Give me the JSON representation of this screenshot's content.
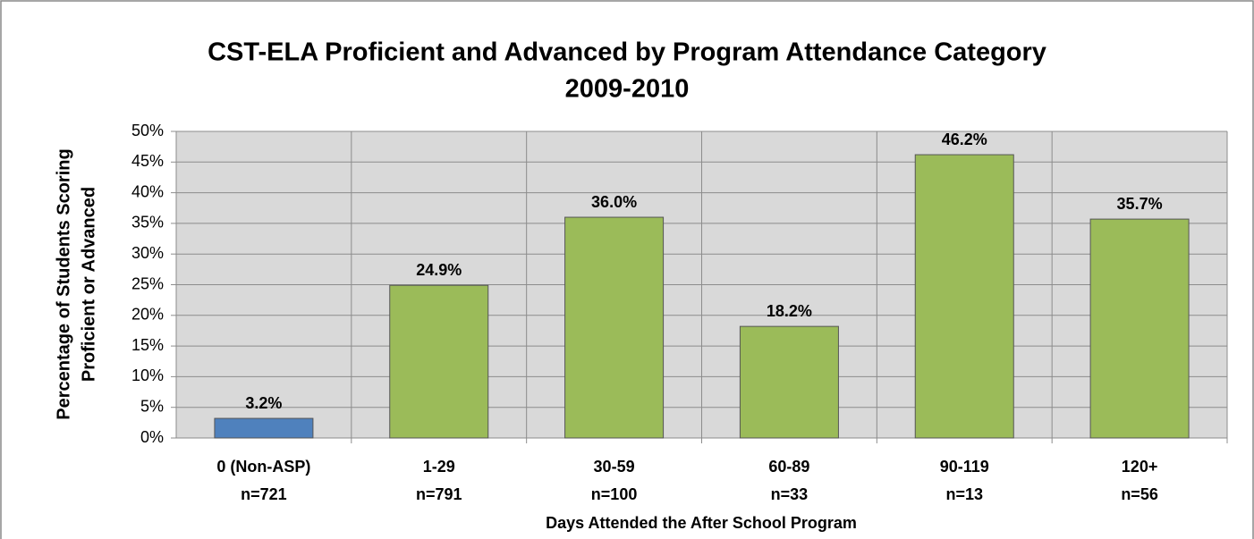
{
  "chart_data": {
    "type": "bar",
    "title": [
      "CST-ELA Proficient and Advanced by Program Attendance Category",
      "2009-2010"
    ],
    "y_label": [
      "Percentage of Students Scoring",
      "Proficient or Advanced"
    ],
    "x_label": "Days Attended the After School Program",
    "categories": [
      [
        "0 (Non-ASP)",
        "n=721"
      ],
      [
        "1-29",
        "n=791"
      ],
      [
        "30-59",
        "n=100"
      ],
      [
        "60-89",
        "n=33"
      ],
      [
        "90-119",
        "n=13"
      ],
      [
        "120+",
        "n=56"
      ]
    ],
    "values": [
      3.2,
      24.9,
      36.0,
      18.2,
      46.2,
      35.7
    ],
    "value_labels": [
      "3.2%",
      "24.9%",
      "36.0%",
      "18.2%",
      "46.2%",
      "35.7%"
    ],
    "colors": [
      "#4f81bd",
      "#9bbb59",
      "#9bbb59",
      "#9bbb59",
      "#9bbb59",
      "#9bbb59"
    ],
    "ylim": [
      0,
      50
    ],
    "yticks": [
      {
        "value": 0,
        "label": "0%"
      },
      {
        "value": 5,
        "label": "5%"
      },
      {
        "value": 10,
        "label": "10%"
      },
      {
        "value": 15,
        "label": "15%"
      },
      {
        "value": 20,
        "label": "20%"
      },
      {
        "value": 25,
        "label": "25%"
      },
      {
        "value": 30,
        "label": "30%"
      },
      {
        "value": 35,
        "label": "35%"
      },
      {
        "value": 40,
        "label": "40%"
      },
      {
        "value": 45,
        "label": "45%"
      },
      {
        "value": 50,
        "label": "50%"
      }
    ],
    "grid": true
  }
}
